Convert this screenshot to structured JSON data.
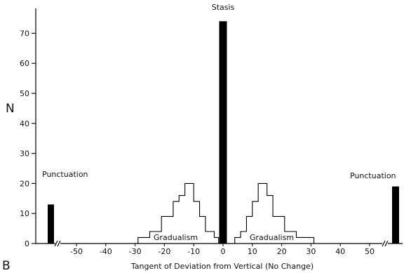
{
  "chart_data": {
    "type": "bar",
    "panel_label": "B",
    "ylabel": "N",
    "xlabel": "Tangent of Deviation from Vertical (No Change)",
    "ylim": [
      0,
      75
    ],
    "y_ticks": [
      "0",
      "10",
      "20",
      "30",
      "40",
      "50",
      "60",
      "70"
    ],
    "x_ticks": [
      "-50",
      "-40",
      "-30",
      "-20",
      "-10",
      "0",
      "10",
      "20",
      "30",
      "40",
      "50"
    ],
    "annotations": {
      "stasis": "Stasis",
      "gradualism_left": "Gradualism",
      "gradualism_right": "Gradualism",
      "punctuation_left": "Punctuation",
      "punctuation_right": "Punctuation"
    },
    "punctuation_bars": [
      {
        "position": "left, beyond -50",
        "value": 13
      },
      {
        "position": "right, beyond 50",
        "value": 19
      }
    ],
    "stasis_bar": {
      "x": 0,
      "value": 74
    },
    "gradualism_left_steps": [
      {
        "x_from": -29,
        "x_to": -25,
        "value": 2
      },
      {
        "x_from": -25,
        "x_to": -21,
        "value": 4
      },
      {
        "x_from": -21,
        "x_to": -17,
        "value": 9
      },
      {
        "x_from": -17,
        "x_to": -15,
        "value": 14
      },
      {
        "x_from": -15,
        "x_to": -13,
        "value": 16
      },
      {
        "x_from": -13,
        "x_to": -10,
        "value": 20
      },
      {
        "x_from": -10,
        "x_to": -8,
        "value": 14
      },
      {
        "x_from": -8,
        "x_to": -6,
        "value": 9
      },
      {
        "x_from": -6,
        "x_to": -3,
        "value": 4
      },
      {
        "x_from": -3,
        "x_to": -1.5,
        "value": 2
      }
    ],
    "gradualism_right_steps": [
      {
        "x_from": 4,
        "x_to": 6,
        "value": 2
      },
      {
        "x_from": 6,
        "x_to": 8,
        "value": 4
      },
      {
        "x_from": 8,
        "x_to": 10,
        "value": 9
      },
      {
        "x_from": 10,
        "x_to": 12,
        "value": 14
      },
      {
        "x_from": 12,
        "x_to": 15,
        "value": 20
      },
      {
        "x_from": 15,
        "x_to": 17,
        "value": 16
      },
      {
        "x_from": 17,
        "x_to": 21,
        "value": 9
      },
      {
        "x_from": 21,
        "x_to": 25,
        "value": 4
      },
      {
        "x_from": 25,
        "x_to": 31,
        "value": 2
      }
    ]
  }
}
